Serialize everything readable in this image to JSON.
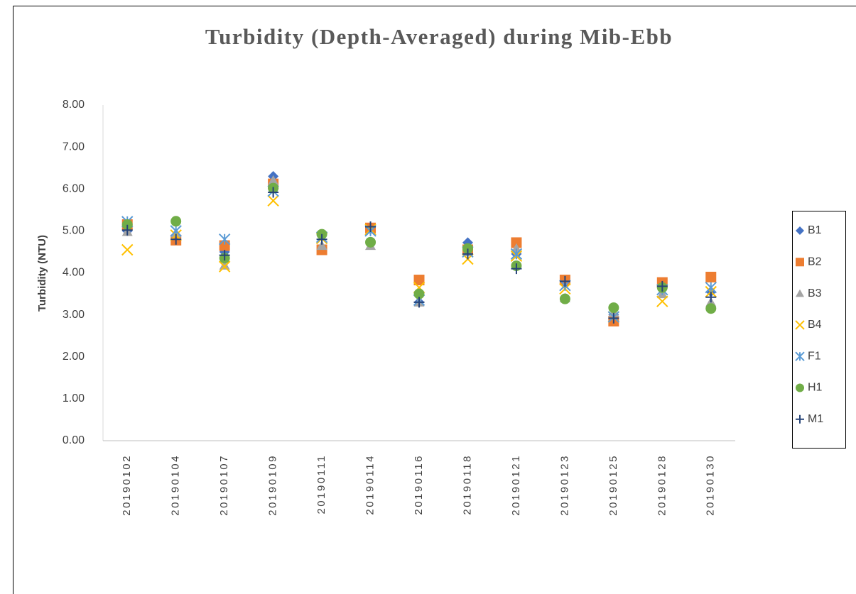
{
  "chart_data": {
    "type": "scatter",
    "title": "Turbidity (Depth-Averaged) during Mib-Ebb",
    "y_label": "Turbidity (NTU)",
    "categories": [
      "20190102",
      "20190104",
      "20190107",
      "20190109",
      "20190111",
      "20190114",
      "20190116",
      "20190118",
      "20190121",
      "20190123",
      "20190125",
      "20190128",
      "20190130"
    ],
    "series": [
      {
        "name": "B1",
        "color": "#4472c4",
        "marker": "diamond",
        "values": [
          5.0,
          4.85,
          4.5,
          6.3,
          4.9,
          5.05,
          3.3,
          4.72,
          4.45,
          3.75,
          3.0,
          3.7,
          3.55
        ]
      },
      {
        "name": "B2",
        "color": "#ed7d31",
        "marker": "square",
        "values": [
          5.15,
          4.78,
          4.65,
          6.12,
          4.55,
          5.07,
          3.83,
          4.55,
          4.72,
          3.83,
          2.85,
          3.77,
          3.9
        ]
      },
      {
        "name": "B3",
        "color": "#a5a5a5",
        "marker": "triangle",
        "values": [
          4.98,
          4.95,
          4.18,
          6.2,
          4.65,
          4.65,
          3.3,
          4.5,
          4.58,
          3.4,
          3.05,
          3.5,
          3.3
        ]
      },
      {
        "name": "B4",
        "color": "#ffc000",
        "marker": "x",
        "values": [
          4.55,
          4.9,
          4.15,
          5.72,
          4.82,
          5.03,
          3.65,
          4.33,
          4.4,
          3.62,
          2.95,
          3.32,
          3.55
        ]
      },
      {
        "name": "F1",
        "color": "#5b9bd5",
        "marker": "asterisk",
        "values": [
          5.22,
          5.0,
          4.8,
          5.95,
          4.85,
          5.0,
          3.35,
          4.5,
          4.45,
          3.7,
          2.95,
          3.6,
          3.65
        ]
      },
      {
        "name": "H1",
        "color": "#70ad47",
        "marker": "circle",
        "values": [
          5.15,
          5.23,
          4.35,
          6.02,
          4.92,
          4.73,
          3.5,
          4.58,
          4.17,
          3.38,
          3.17,
          3.65,
          3.15
        ]
      },
      {
        "name": "M1",
        "color": "#264478",
        "marker": "plus",
        "values": [
          5.02,
          4.8,
          4.42,
          5.92,
          4.8,
          5.1,
          3.3,
          4.45,
          4.1,
          3.8,
          2.92,
          3.68,
          3.42
        ]
      }
    ],
    "ylim": [
      0,
      8
    ],
    "yticks": [
      {
        "value": 0,
        "label": "0.00"
      },
      {
        "value": 1,
        "label": "1.00"
      },
      {
        "value": 2,
        "label": "2.00"
      },
      {
        "value": 3,
        "label": "3.00"
      },
      {
        "value": 4,
        "label": "4.00"
      },
      {
        "value": 5,
        "label": "5.00"
      },
      {
        "value": 6,
        "label": "6.00"
      },
      {
        "value": 7,
        "label": "7.00"
      },
      {
        "value": 8,
        "label": "8.00"
      }
    ],
    "grid": false,
    "legend": "right"
  }
}
